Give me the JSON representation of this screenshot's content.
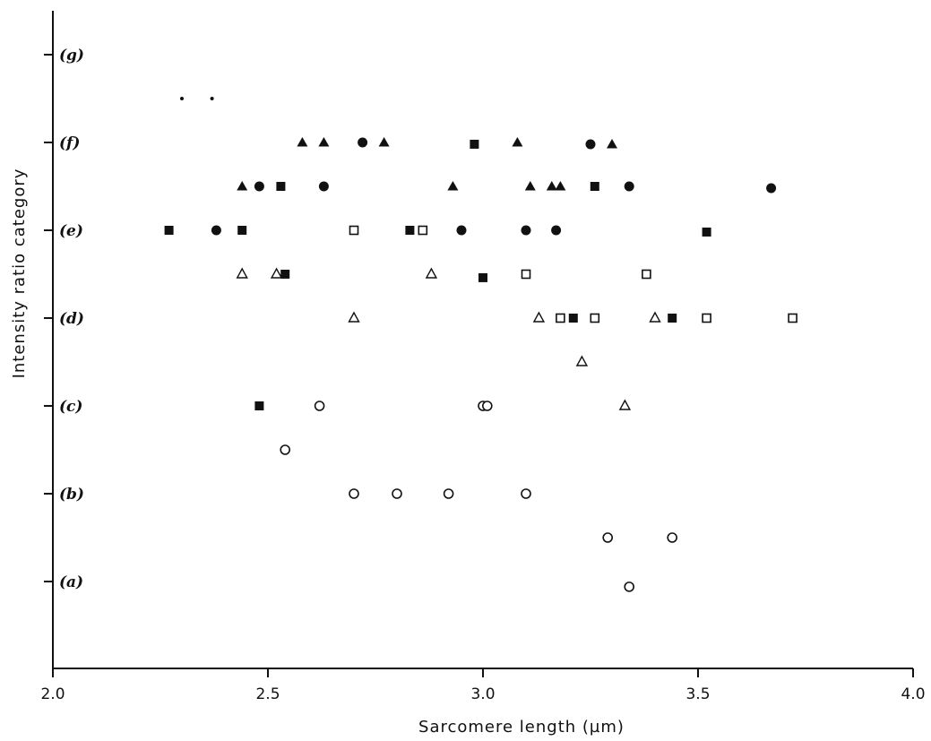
{
  "chart_data": {
    "type": "scatter",
    "title": "",
    "xlabel": "Sarcomere length (µm)",
    "ylabel": "Intensity ratio category",
    "xlim": [
      2.0,
      4.0
    ],
    "ylim": [
      -1.1,
      7.2
    ],
    "x_ticks": [
      {
        "value": 2.0,
        "label": "2.0"
      },
      {
        "value": 2.5,
        "label": "2.5"
      },
      {
        "value": 3.0,
        "label": "3.0"
      },
      {
        "value": 3.5,
        "label": "3.5"
      },
      {
        "value": 4.0,
        "label": "4.0"
      }
    ],
    "y_ticks": [
      {
        "value": 0,
        "label": "(a)"
      },
      {
        "value": 1,
        "label": "(b)"
      },
      {
        "value": 2,
        "label": "(c)"
      },
      {
        "value": 3,
        "label": "(d)"
      },
      {
        "value": 4,
        "label": "(e)"
      },
      {
        "value": 5,
        "label": "(f)"
      },
      {
        "value": 6,
        "label": "(g)"
      }
    ],
    "grid": false,
    "legend": "none",
    "series": [
      {
        "marker": "open-circle",
        "points": [
          {
            "x": 2.54,
            "y": 1.5
          },
          {
            "x": 2.62,
            "y": 2.0
          },
          {
            "x": 3.0,
            "y": 2.0
          },
          {
            "x": 3.01,
            "y": 2.0
          },
          {
            "x": 2.7,
            "y": 1.0
          },
          {
            "x": 2.8,
            "y": 1.0
          },
          {
            "x": 2.92,
            "y": 1.0
          },
          {
            "x": 3.1,
            "y": 1.0
          },
          {
            "x": 3.29,
            "y": 0.5
          },
          {
            "x": 3.44,
            "y": 0.5
          },
          {
            "x": 3.34,
            "y": -0.06
          }
        ]
      },
      {
        "marker": "open-triangle",
        "points": [
          {
            "x": 2.44,
            "y": 3.5
          },
          {
            "x": 2.52,
            "y": 3.5
          },
          {
            "x": 2.88,
            "y": 3.5
          },
          {
            "x": 2.7,
            "y": 3.0
          },
          {
            "x": 3.13,
            "y": 3.0
          },
          {
            "x": 3.4,
            "y": 3.0
          },
          {
            "x": 3.23,
            "y": 2.5
          },
          {
            "x": 3.33,
            "y": 2.0
          }
        ]
      },
      {
        "marker": "open-square",
        "points": [
          {
            "x": 2.7,
            "y": 4.0
          },
          {
            "x": 2.86,
            "y": 4.0
          },
          {
            "x": 3.1,
            "y": 3.5
          },
          {
            "x": 3.38,
            "y": 3.5
          },
          {
            "x": 3.18,
            "y": 3.0
          },
          {
            "x": 3.26,
            "y": 3.0
          },
          {
            "x": 3.52,
            "y": 3.0
          },
          {
            "x": 3.72,
            "y": 3.0
          }
        ]
      },
      {
        "marker": "filled-square",
        "points": [
          {
            "x": 2.27,
            "y": 4.0
          },
          {
            "x": 2.44,
            "y": 4.0
          },
          {
            "x": 2.83,
            "y": 4.0
          },
          {
            "x": 3.52,
            "y": 3.98
          },
          {
            "x": 2.54,
            "y": 3.5
          },
          {
            "x": 3.0,
            "y": 3.46
          },
          {
            "x": 3.21,
            "y": 3.0
          },
          {
            "x": 3.44,
            "y": 3.0
          },
          {
            "x": 2.48,
            "y": 2.0
          },
          {
            "x": 2.53,
            "y": 4.5
          },
          {
            "x": 3.26,
            "y": 4.5
          },
          {
            "x": 2.98,
            "y": 4.98
          }
        ]
      },
      {
        "marker": "filled-circle",
        "points": [
          {
            "x": 2.38,
            "y": 4.0
          },
          {
            "x": 2.95,
            "y": 4.0
          },
          {
            "x": 3.1,
            "y": 4.0
          },
          {
            "x": 3.17,
            "y": 4.0
          },
          {
            "x": 2.48,
            "y": 4.5
          },
          {
            "x": 2.63,
            "y": 4.5
          },
          {
            "x": 3.34,
            "y": 4.5
          },
          {
            "x": 3.67,
            "y": 4.48
          },
          {
            "x": 2.72,
            "y": 5.0
          },
          {
            "x": 3.25,
            "y": 4.98
          }
        ]
      },
      {
        "marker": "filled-triangle",
        "points": [
          {
            "x": 2.44,
            "y": 4.5
          },
          {
            "x": 2.93,
            "y": 4.5
          },
          {
            "x": 3.11,
            "y": 4.5
          },
          {
            "x": 3.16,
            "y": 4.5
          },
          {
            "x": 3.18,
            "y": 4.5
          },
          {
            "x": 2.58,
            "y": 5.0
          },
          {
            "x": 2.63,
            "y": 5.0
          },
          {
            "x": 2.77,
            "y": 5.0
          },
          {
            "x": 3.08,
            "y": 5.0
          },
          {
            "x": 3.3,
            "y": 4.98
          }
        ]
      },
      {
        "marker": "small-dot",
        "points": [
          {
            "x": 2.3,
            "y": 5.5
          },
          {
            "x": 2.37,
            "y": 5.5
          }
        ]
      }
    ]
  }
}
